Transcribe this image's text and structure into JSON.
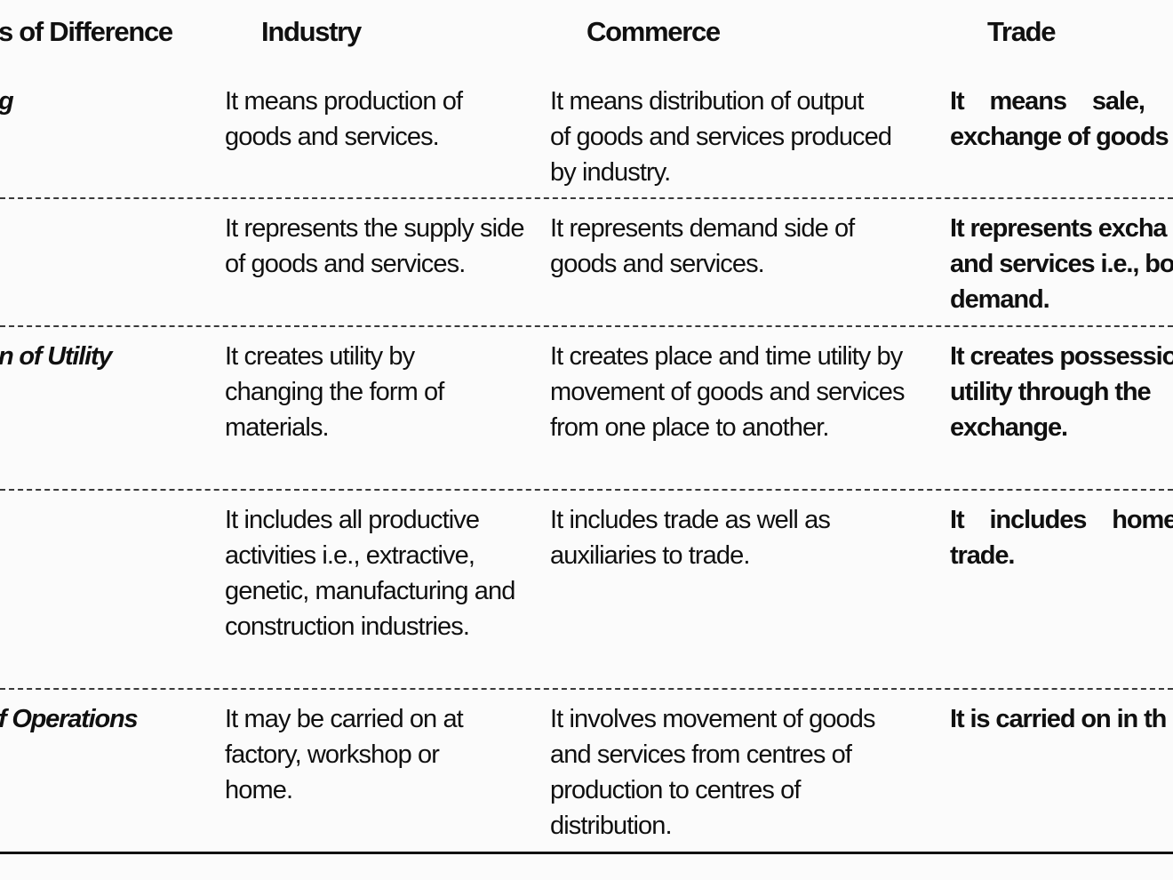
{
  "headers": {
    "basis": "s of Difference",
    "industry": "Industry",
    "commerce": "Commerce",
    "trade": "Trade"
  },
  "rows": [
    {
      "label": "g",
      "industry": "It means production of goods and services.",
      "commerce": [
        "It means distribution of output",
        "of goods and services produced",
        "by industry."
      ],
      "trade": [
        "It means sale,",
        "exchange of goods"
      ]
    },
    {
      "label": "",
      "industry": "It represents the supply side of goods and services.",
      "commerce": "It represents demand side of goods and services.",
      "trade": [
        "It represents excha",
        "and services i.e., bo",
        "demand."
      ]
    },
    {
      "label": "n of Utility",
      "industry": "It creates utility by changing the form of materials.",
      "commerce": "It creates place and time utility by movement of goods and services from one place to another.",
      "trade": [
        "It creates possessio",
        "utility through the",
        "exchange."
      ]
    },
    {
      "label": "",
      "industry": "It includes all productive activities i.e., extractive, genetic, manufacturing and construction industries.",
      "commerce": "It includes trade as well as auxiliaries to trade.",
      "trade": [
        "It includes home",
        "trade."
      ]
    },
    {
      "label": "f Operations",
      "industry": "It may be carried on at factory, workshop or home.",
      "commerce": "It involves movement of goods and services from centres of production to centres of distribution.",
      "trade": [
        "It is carried on in th"
      ]
    }
  ]
}
